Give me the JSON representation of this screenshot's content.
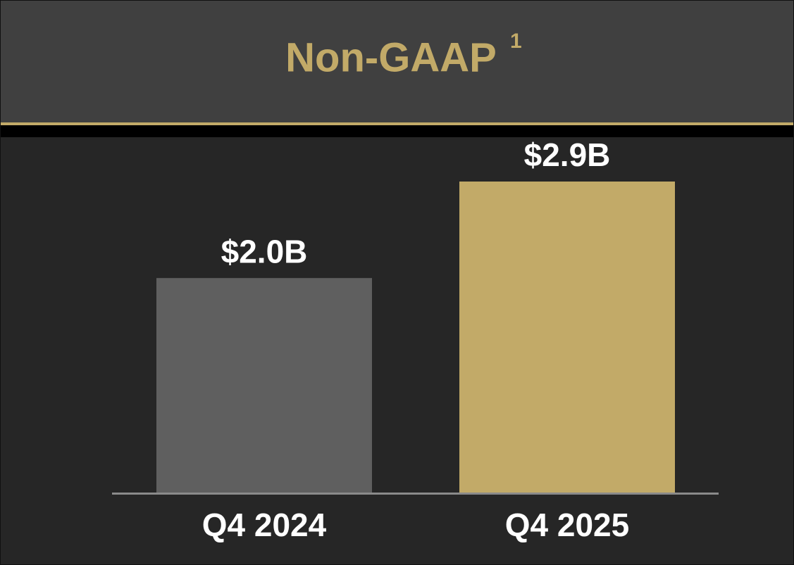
{
  "chart_data": {
    "type": "bar",
    "title": "Non-GAAP",
    "title_footnote": "1",
    "categories": [
      "Q4 2024",
      "Q4 2025"
    ],
    "values": [
      2.0,
      2.9
    ],
    "value_labels": [
      "$2.0B",
      "$2.9B"
    ],
    "colors": [
      "#5f5f5f",
      "#c2aa68"
    ]
  }
}
